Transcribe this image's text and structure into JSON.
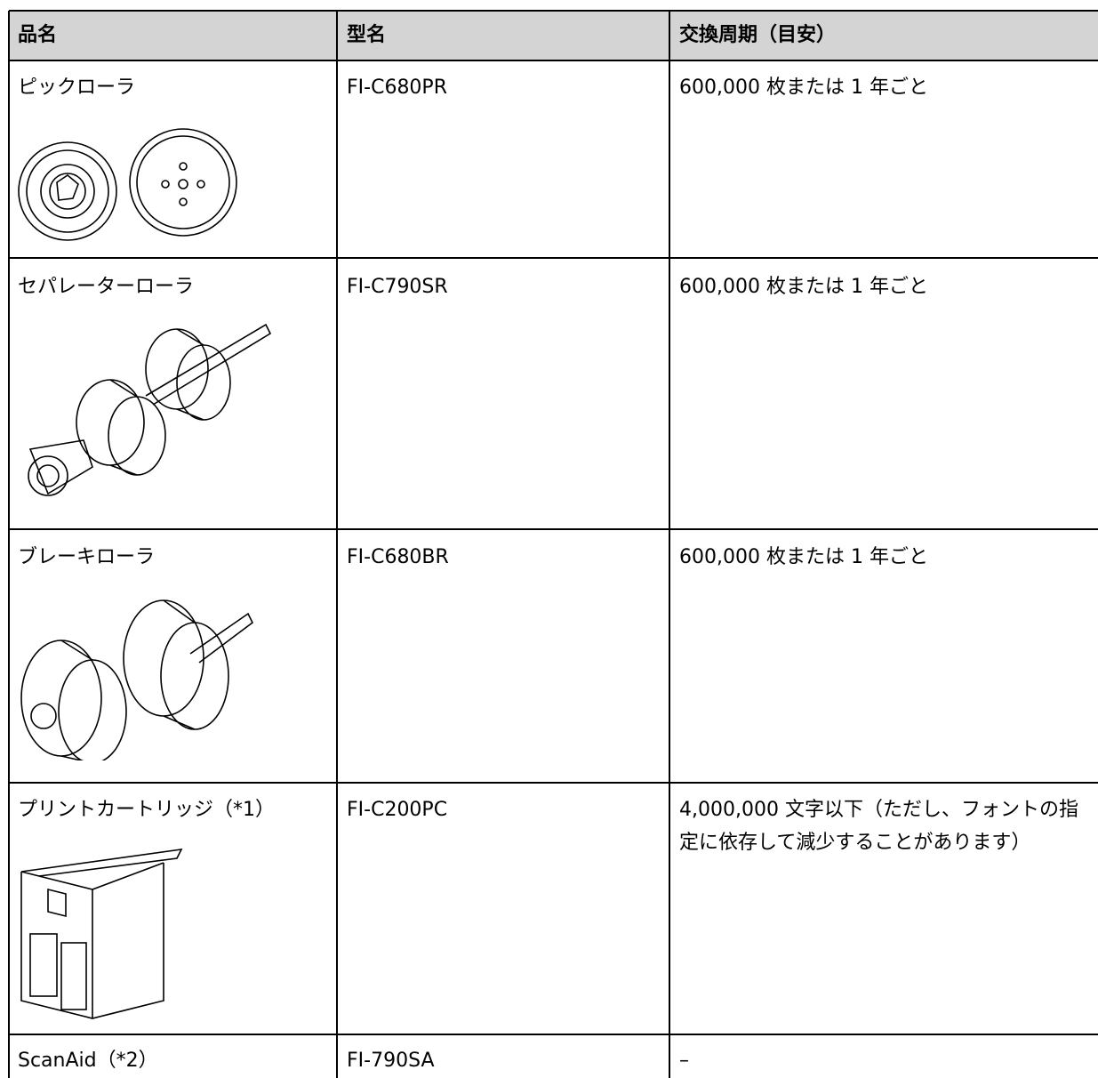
{
  "table": {
    "header": [
      "品名",
      "型名",
      "交換周期（目安）"
    ],
    "rows": [
      [
        "ピックローラ",
        "FI-C680PR",
        "600,000 枚または 1 年ごと"
      ],
      [
        "セパレーターローラ",
        "FI-C790SR",
        "600,000 枚または 1 年ごと"
      ],
      [
        "ブレーキローラ",
        "FI-C680BR",
        "600,000 枚または 1 年ごと"
      ],
      [
        "プリントカートリッジ（*1）",
        "FI-C200PC",
        "4,000,000 文字以下（ただし、フォントの指定に依存して減少することがあります）"
      ],
      [
        "ScanAid（*2）",
        "FI-790SA",
        "–"
      ]
    ]
  }
}
